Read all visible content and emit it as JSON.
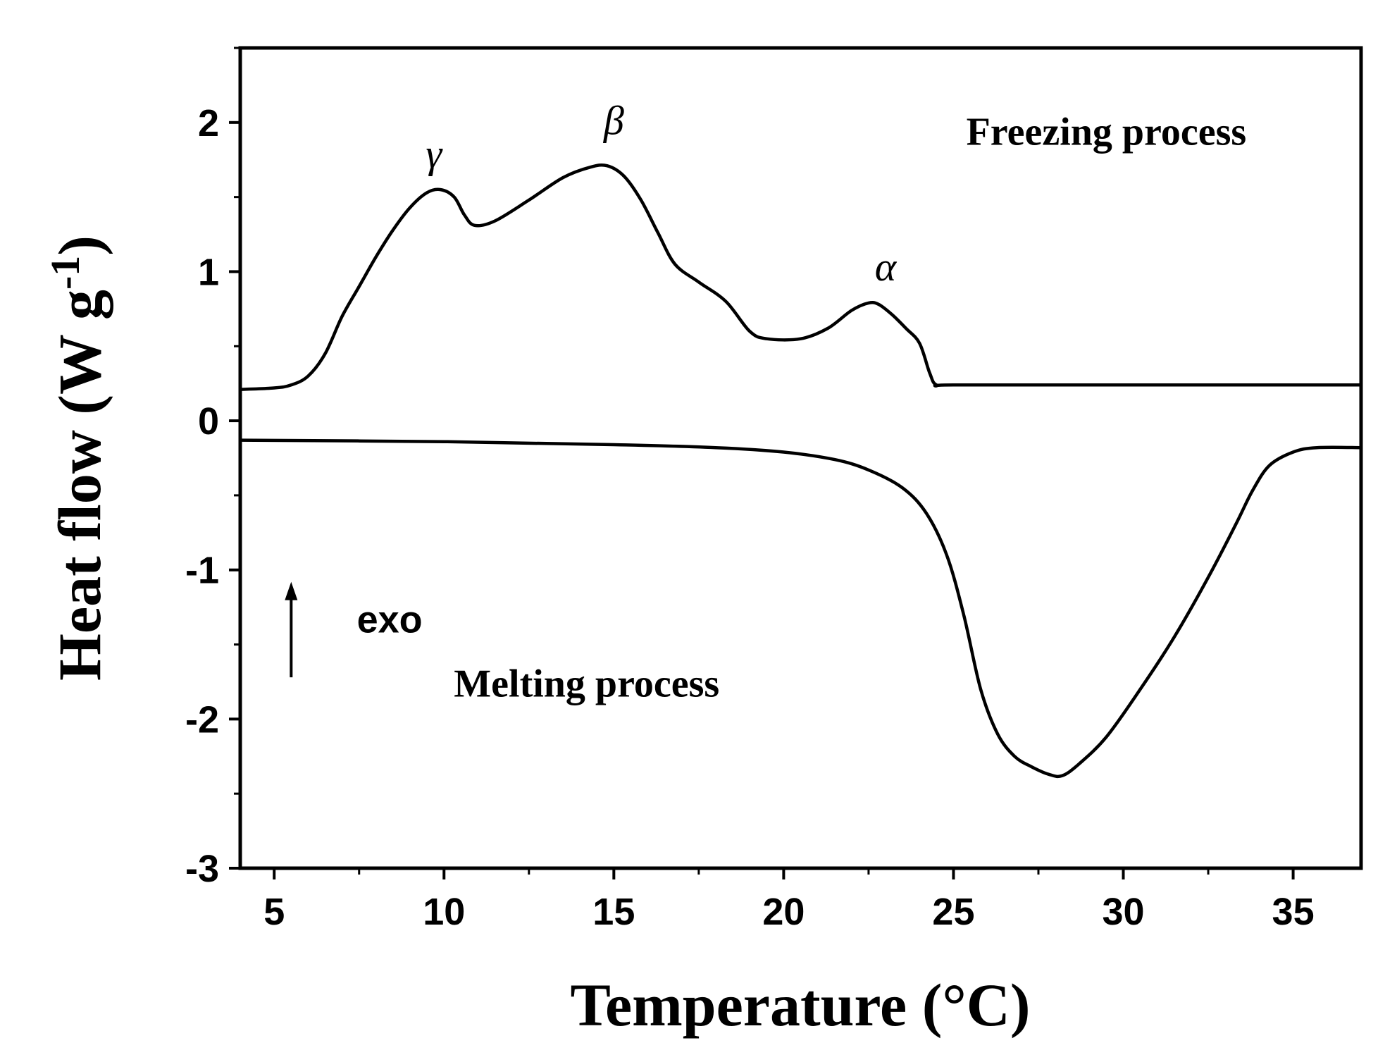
{
  "chart_data": {
    "type": "line",
    "xlabel": "Temperature (°C)",
    "ylabel": "Heat flow (W g",
    "ylabel_sup": "-1",
    "ylabel_close": ")",
    "xlim": [
      4,
      37
    ],
    "ylim": [
      -3,
      2.5
    ],
    "x_ticks": [
      5,
      10,
      15,
      20,
      25,
      30,
      35
    ],
    "y_ticks": [
      -3,
      -2,
      -1,
      0,
      1,
      2
    ],
    "x_tick_labels": [
      "5",
      "10",
      "15",
      "20",
      "25",
      "30",
      "35"
    ],
    "y_tick_labels": [
      "-3",
      "-2",
      "-1",
      "0",
      "1",
      "2"
    ],
    "grid": false,
    "series": [
      {
        "name": "Freezing process",
        "x": [
          4,
          5,
          5.5,
          6,
          6.5,
          7,
          7.5,
          8,
          8.5,
          9,
          9.5,
          9.9,
          10.3,
          10.6,
          10.9,
          11.5,
          12.5,
          13.5,
          14.3,
          14.8,
          15.3,
          15.8,
          16.3,
          16.8,
          17.5,
          18.3,
          19,
          19.5,
          20.5,
          21.3,
          22,
          22.5,
          22.8,
          23.2,
          23.6,
          24,
          24.3,
          24.5,
          25,
          30,
          37
        ],
        "values": [
          0.21,
          0.22,
          0.24,
          0.3,
          0.45,
          0.7,
          0.9,
          1.1,
          1.28,
          1.43,
          1.53,
          1.55,
          1.5,
          1.38,
          1.31,
          1.34,
          1.48,
          1.63,
          1.7,
          1.71,
          1.64,
          1.48,
          1.26,
          1.05,
          0.93,
          0.8,
          0.6,
          0.55,
          0.55,
          0.62,
          0.74,
          0.79,
          0.78,
          0.71,
          0.62,
          0.52,
          0.32,
          0.24,
          0.24,
          0.24,
          0.24
        ]
      },
      {
        "name": "Melting process",
        "x": [
          4,
          10,
          15,
          18,
          20,
          21.5,
          22.5,
          23.5,
          24.2,
          24.8,
          25.3,
          25.8,
          26.3,
          26.8,
          27.3,
          27.8,
          28.2,
          28.7,
          29.5,
          30.5,
          31.5,
          32.5,
          33.3,
          33.8,
          34.3,
          35,
          35.7,
          37
        ],
        "values": [
          -0.13,
          -0.14,
          -0.16,
          -0.18,
          -0.21,
          -0.26,
          -0.33,
          -0.45,
          -0.62,
          -0.9,
          -1.3,
          -1.8,
          -2.1,
          -2.25,
          -2.32,
          -2.37,
          -2.38,
          -2.3,
          -2.12,
          -1.8,
          -1.45,
          -1.05,
          -0.7,
          -0.47,
          -0.3,
          -0.21,
          -0.18,
          -0.18
        ]
      }
    ],
    "annotations": {
      "freezing": "Freezing process",
      "melting": "Melting process",
      "exo": "exo",
      "gamma": "γ",
      "beta": "β",
      "alpha": "α"
    },
    "annotation_anchors": {
      "freezing": [
        29.5,
        1.85
      ],
      "melting": [
        14.2,
        -1.85
      ],
      "exo": [
        8.4,
        -1.42
      ],
      "gamma": [
        9.7,
        1.7
      ],
      "beta": [
        15.0,
        1.92
      ],
      "alpha": [
        23.0,
        0.94
      ],
      "exo_arrow": [
        5.5,
        -1.72,
        5.5,
        -1.08
      ]
    }
  }
}
